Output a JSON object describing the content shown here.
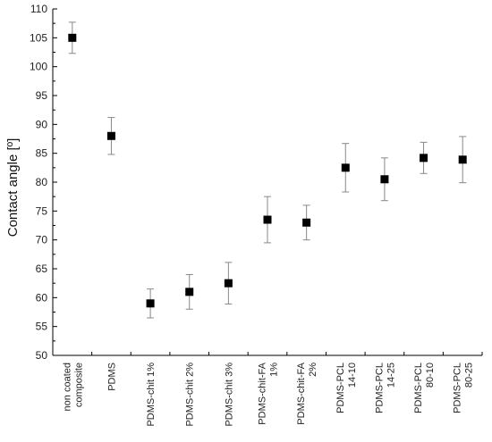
{
  "chart_data": {
    "type": "scatter",
    "title": "",
    "xlabel": "",
    "ylabel": "Contact angle [º]",
    "ylim": [
      50,
      110
    ],
    "yticks": [
      50,
      55,
      60,
      65,
      70,
      75,
      80,
      85,
      90,
      95,
      100,
      105,
      110
    ],
    "grid": false,
    "legend": "none",
    "categories": [
      [
        "non coated",
        "composite"
      ],
      [
        "PDMS"
      ],
      [
        "PDMS-chit 1%"
      ],
      [
        "PDMS-chit 2%"
      ],
      [
        "PDMS-chit 3%"
      ],
      [
        "PDMS-chit-FA",
        "1%"
      ],
      [
        "PDMS-chit-FA",
        "2%"
      ],
      [
        "PDMS-PCL",
        "14-10"
      ],
      [
        "PDMS-PCL",
        "14-25"
      ],
      [
        "PDMS-PCL",
        "80-10"
      ],
      [
        "PDMS-PCL",
        "80-25"
      ]
    ],
    "values": [
      105.0,
      88.0,
      59.0,
      61.0,
      62.5,
      73.5,
      73.0,
      82.5,
      80.5,
      84.2,
      83.9
    ],
    "errors": [
      2.7,
      3.2,
      2.5,
      3.0,
      3.6,
      4.0,
      3.0,
      4.2,
      3.7,
      2.7,
      4.0
    ],
    "colors": {
      "marker": "#000000",
      "errorbar": "#888888",
      "axis": "#000000"
    }
  }
}
